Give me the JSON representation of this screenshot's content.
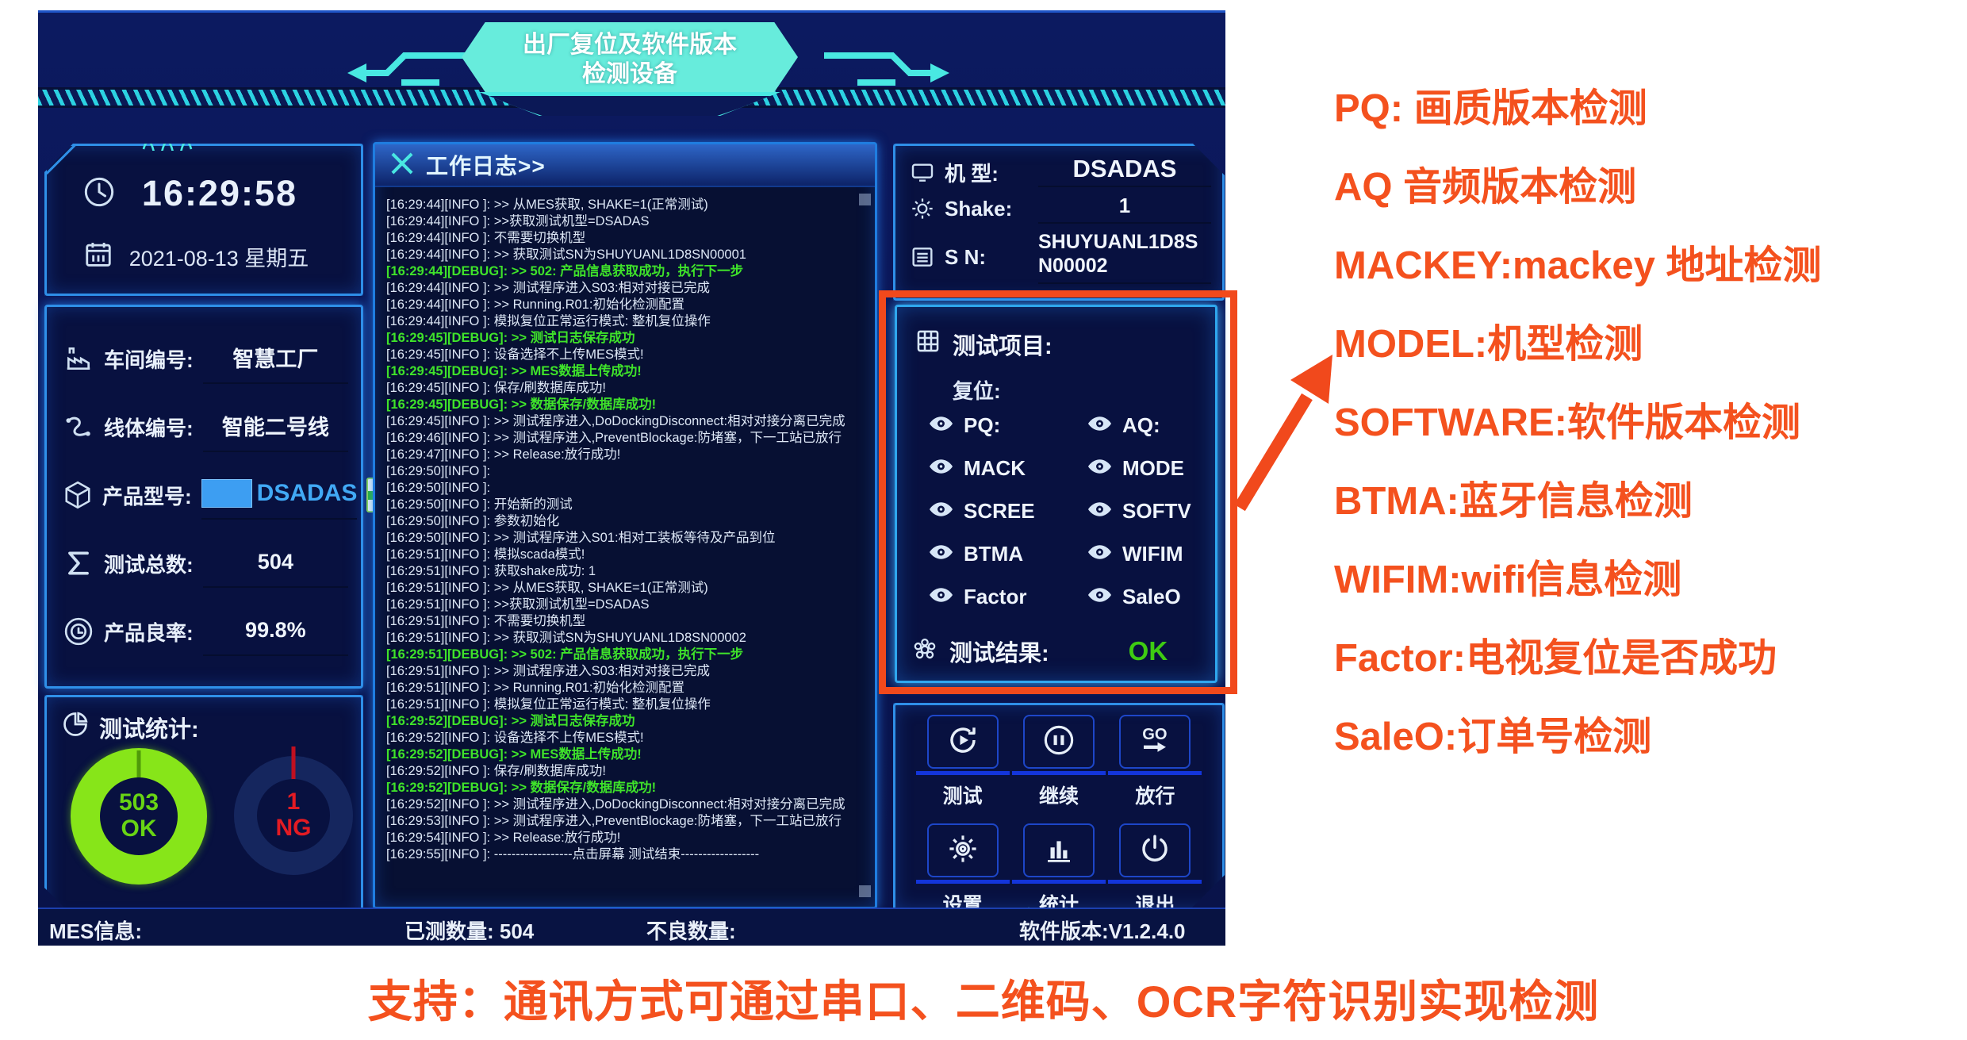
{
  "header": {
    "title_line1": "出厂复位及软件版本",
    "title_line2": "检测设备"
  },
  "time_panel": {
    "time": "16:29:58",
    "date": "2021-08-13 星期五"
  },
  "info_panel": {
    "fields": [
      {
        "icon": "factory-icon",
        "label": "车间编号:",
        "value": "智慧工厂"
      },
      {
        "icon": "line-icon",
        "label": "线体编号:",
        "value": "智能二号线"
      },
      {
        "icon": "product-icon",
        "label": "产品型号:",
        "value": "DSADAS",
        "value_class": "model-value",
        "swatch": true,
        "dropdown": true
      },
      {
        "icon": "sigma-icon",
        "label": "测试总数:",
        "value": "504"
      },
      {
        "icon": "yield-icon",
        "label": "产品良率:",
        "value": "99.8%"
      }
    ]
  },
  "stats_panel": {
    "title": "测试统计:",
    "ok": {
      "count": "503",
      "label": "OK",
      "color": "#68d414"
    },
    "ng": {
      "count": "1",
      "label": "NG",
      "color": "#e31b23"
    }
  },
  "log_panel": {
    "title": "工作日志>>",
    "lines": [
      {
        "level": "info",
        "text": "[16:29:44][INFO ]: >> 从MES获取, SHAKE=1(正常测试)"
      },
      {
        "level": "info",
        "text": "[16:29:44][INFO ]: >>获取测试机型=DSADAS"
      },
      {
        "level": "info",
        "text": "[16:29:44][INFO ]: 不需要切换机型"
      },
      {
        "level": "info",
        "text": "[16:29:44][INFO ]: >> 获取测试SN为SHUYUANL1D8SN00001"
      },
      {
        "level": "debug",
        "text": "[16:29:44][DEBUG]: >> 502: 产品信息获取成功，执行下一步"
      },
      {
        "level": "info",
        "text": "[16:29:44][INFO ]: >> 测试程序进入S03:相对对接已完成"
      },
      {
        "level": "info",
        "text": "[16:29:44][INFO ]: >> Running.R01:初始化检测配置"
      },
      {
        "level": "info",
        "text": "[16:29:44][INFO ]: 模拟复位正常运行模式: 整机复位操作"
      },
      {
        "level": "debug",
        "text": "[16:29:45][DEBUG]: >> 测试日志保存成功"
      },
      {
        "level": "info",
        "text": "[16:29:45][INFO ]: 设备选择不上传MES模式!"
      },
      {
        "level": "debug",
        "text": "[16:29:45][DEBUG]: >> MES数据上传成功!"
      },
      {
        "level": "info",
        "text": "[16:29:45][INFO ]: 保存/刷数据库成功!"
      },
      {
        "level": "debug",
        "text": "[16:29:45][DEBUG]: >> 数据保存/数据库成功!"
      },
      {
        "level": "info",
        "text": "[16:29:45][INFO ]: >> 测试程序进入,DoDockingDisconnect:相对对接分离已完成"
      },
      {
        "level": "info",
        "text": "[16:29:46][INFO ]: >> 测试程序进入,PreventBlockage:防堵塞，下一工站已放行"
      },
      {
        "level": "info",
        "text": "[16:29:47][INFO ]: >> Release:放行成功!"
      },
      {
        "level": "info",
        "text": "[16:29:50][INFO ]:"
      },
      {
        "level": "info",
        "text": "[16:29:50][INFO ]:"
      },
      {
        "level": "info",
        "text": "[16:29:50][INFO ]: 开始新的测试"
      },
      {
        "level": "info",
        "text": "[16:29:50][INFO ]: 参数初始化"
      },
      {
        "level": "info",
        "text": "[16:29:50][INFO ]: >> 测试程序进入S01:相对工装板等待及产品到位"
      },
      {
        "level": "info",
        "text": "[16:29:51][INFO ]: 模拟scada模式!"
      },
      {
        "level": "info",
        "text": "[16:29:51][INFO ]: 获取shake成功:  1"
      },
      {
        "level": "info",
        "text": "[16:29:51][INFO ]: >> 从MES获取, SHAKE=1(正常测试)"
      },
      {
        "level": "info",
        "text": "[16:29:51][INFO ]: >>获取测试机型=DSADAS"
      },
      {
        "level": "info",
        "text": "[16:29:51][INFO ]: 不需要切换机型"
      },
      {
        "level": "info",
        "text": "[16:29:51][INFO ]: >> 获取测试SN为SHUYUANL1D8SN00002"
      },
      {
        "level": "debug",
        "text": "[16:29:51][DEBUG]: >> 502: 产品信息获取成功，执行下一步"
      },
      {
        "level": "info",
        "text": "[16:29:51][INFO ]: >> 测试程序进入S03:相对对接已完成"
      },
      {
        "level": "info",
        "text": "[16:29:51][INFO ]: >> Running.R01:初始化检测配置"
      },
      {
        "level": "info",
        "text": "[16:29:51][INFO ]: 模拟复位正常运行模式: 整机复位操作"
      },
      {
        "level": "debug",
        "text": "[16:29:52][DEBUG]: >> 测试日志保存成功"
      },
      {
        "level": "info",
        "text": "[16:29:52][INFO ]: 设备选择不上传MES模式!"
      },
      {
        "level": "debug",
        "text": "[16:29:52][DEBUG]: >> MES数据上传成功!"
      },
      {
        "level": "info",
        "text": "[16:29:52][INFO ]: 保存/刷数据库成功!"
      },
      {
        "level": "debug",
        "text": "[16:29:52][DEBUG]: >> 数据保存/数据库成功!"
      },
      {
        "level": "info",
        "text": "[16:29:52][INFO ]: >> 测试程序进入,DoDockingDisconnect:相对对接分离已完成"
      },
      {
        "level": "info",
        "text": "[16:29:53][INFO ]: >> 测试程序进入,PreventBlockage:防堵塞，下一工站已放行"
      },
      {
        "level": "info",
        "text": "[16:29:54][INFO ]: >> Release:放行成功!"
      },
      {
        "level": "info",
        "text": "[16:29:55][INFO ]: ------------------点击屏幕 测试结束------------------"
      }
    ]
  },
  "device_panel": {
    "rows": [
      {
        "icon": "monitor-icon",
        "label": "机 型:",
        "value": "DSADAS",
        "value_class": "device-model"
      },
      {
        "icon": "gear-icon",
        "label": "Shake:",
        "value": "1"
      },
      {
        "icon": "list-icon",
        "label": "S N:",
        "value": "SHUYUANL1D8SN00002",
        "value_class": "sn-value"
      }
    ]
  },
  "test_panel": {
    "title": "测试项目:",
    "subtitle": "复位:",
    "items": [
      "PQ:",
      "AQ:",
      "MACK",
      "MODE",
      "SCREE",
      "SOFTV",
      "BTMA",
      "WIFIM",
      "Factor",
      "SaleO"
    ],
    "result_label": "测试结果:",
    "result_value": "OK",
    "result_color": "#3ecb12"
  },
  "buttons": [
    {
      "icon": "test-icon",
      "label": "测试"
    },
    {
      "icon": "pause-icon",
      "label": "继续"
    },
    {
      "icon": "go-icon",
      "label": "放行"
    },
    {
      "icon": "settings-icon",
      "label": "设置"
    },
    {
      "icon": "stats-icon",
      "label": "统计"
    },
    {
      "icon": "power-icon",
      "label": "退出"
    }
  ],
  "status_bar": {
    "mes": "MES信息:",
    "tested": "已测数量: 504",
    "defect": "不良数量:",
    "version": "软件版本:V1.2.4.0"
  },
  "annotations": {
    "color": "#f4511e",
    "lines": [
      "PQ: 画质版本检测",
      "AQ 音频版本检测",
      "MACKEY:mackey 地址检测",
      "MODEL:机型检测",
      "SOFTWARE:软件版本检测",
      "BTMA:蓝牙信息检测",
      "WIFIM:wifi信息检测",
      "Factor:电视复位是否成功",
      "SaleO:订单号检测"
    ]
  },
  "caption": "支持：通讯方式可通过串口、二维码、OCR字符识别实现检测"
}
